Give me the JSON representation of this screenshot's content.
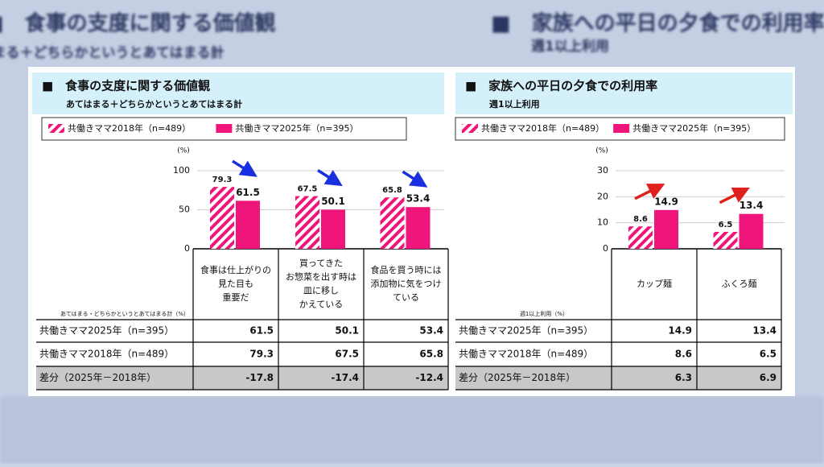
{
  "chart_data": [
    {
      "type": "bar",
      "title": "■　食事の支度に関する価値観",
      "subtitle": "あてはまる＋どちらかというとあてはまる計",
      "y_unit": "(%)",
      "categories": [
        "食事は仕上がりの\n見た目も\n重要だ",
        "買ってきた\nお惣菜を出す時は\n皿に移し\nかえている",
        "食品を買う時には\n添加物に気をつけ\nている"
      ],
      "series": [
        {
          "name": "共働きママ2018年（n=489）",
          "color": "#f0157a",
          "pattern": "hatch",
          "values": [
            79.3,
            67.5,
            65.8
          ]
        },
        {
          "name": "共働きママ2025年（n=395）",
          "color": "#f0157a",
          "values": [
            61.5,
            50.1,
            53.4
          ]
        }
      ],
      "ylim": [
        0,
        100
      ],
      "yticks": [
        0,
        50,
        100
      ],
      "grid": true,
      "table_note": "あてはまる・どちらかというとあてはまる計（%）",
      "diff_label": "差分（2025年－2018年）",
      "diff_values": [
        -17.8,
        -17.4,
        -12.4
      ],
      "diff_color": "#1a3fd0",
      "arrow_color": "#1a2fe0"
    },
    {
      "type": "bar",
      "title": "■　家族への平日の夕食での利用率",
      "subtitle": "週1以上利用",
      "y_unit": "(%)",
      "categories": [
        "カップ麺",
        "ふくろ麺"
      ],
      "series": [
        {
          "name": "共働きママ2018年（n=489）",
          "color": "#f0157a",
          "pattern": "hatch",
          "values": [
            8.6,
            6.5
          ]
        },
        {
          "name": "共働きママ2025年（n=395）",
          "color": "#f0157a",
          "values": [
            14.9,
            13.4
          ]
        }
      ],
      "ylim": [
        0,
        30
      ],
      "yticks": [
        0,
        10,
        20,
        30
      ],
      "grid": true,
      "table_note": "週1以上利用（%）",
      "diff_label": "差分（2025年－2018年）",
      "diff_values": [
        6.3,
        6.9
      ],
      "diff_color": "#e0201e",
      "arrow_color": "#e0201e"
    }
  ]
}
